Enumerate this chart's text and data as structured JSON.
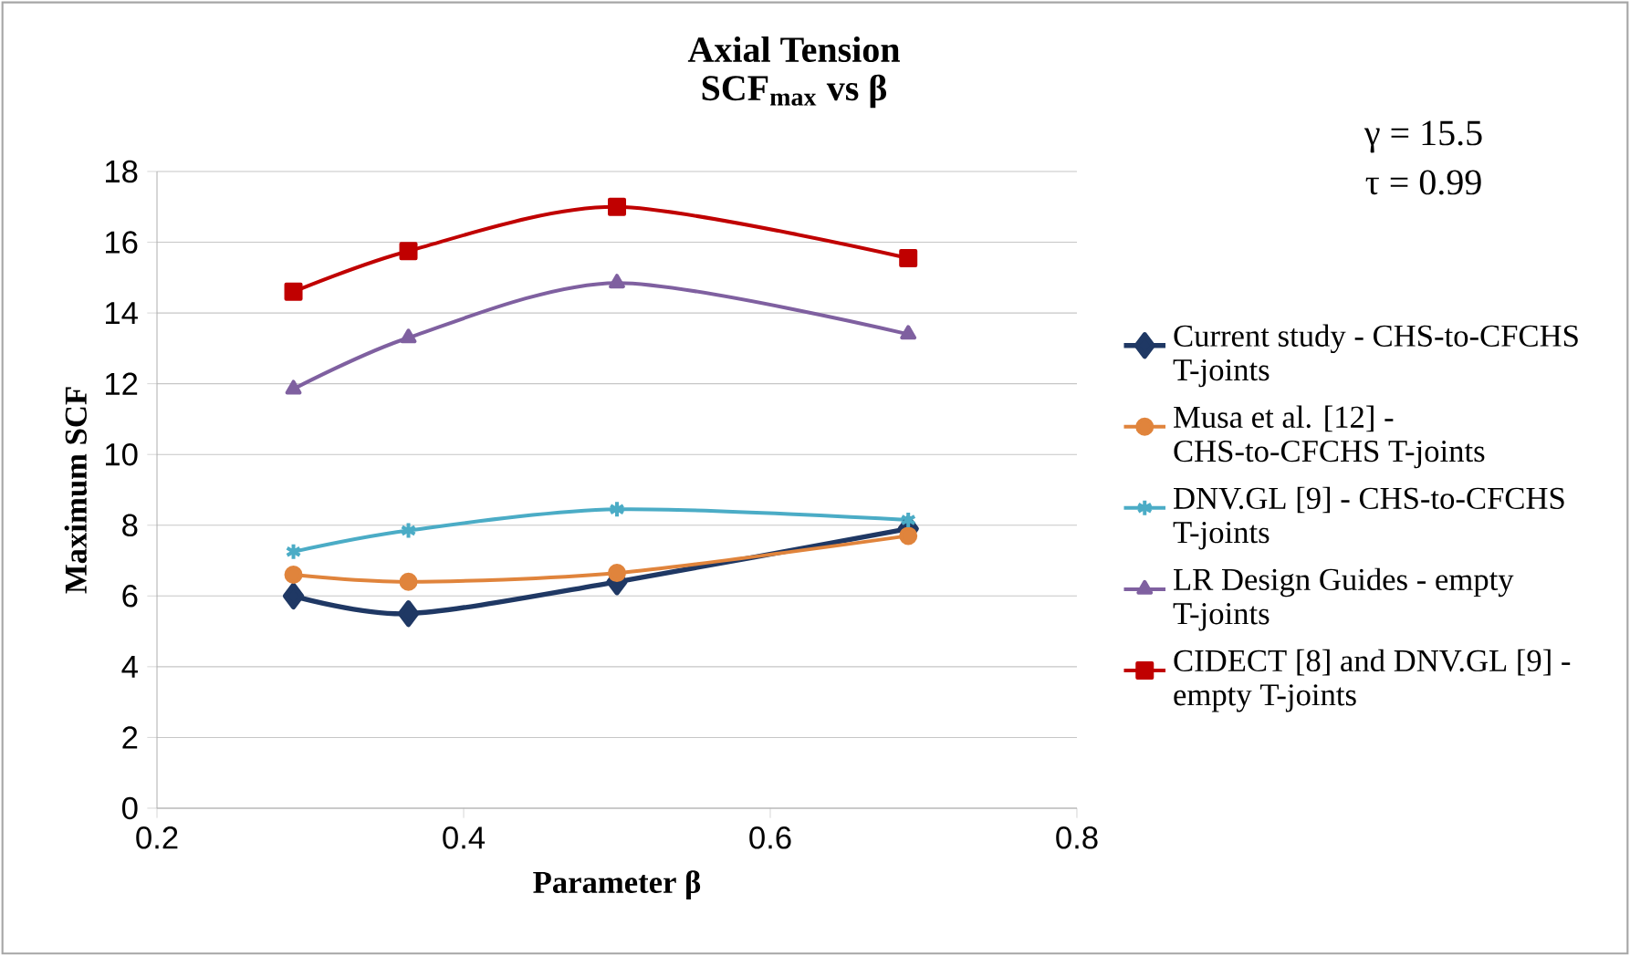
{
  "chart_data": {
    "type": "line",
    "title": "Axial Tension",
    "subtitle": "SCF$_{max}$ vs β",
    "xlabel": "Parameter β",
    "ylabel": "Maximum SCF",
    "x": [
      0.289,
      0.364,
      0.5,
      0.69
    ],
    "series": [
      {
        "name": "Current study - CHS-to-CFCHS T-joints",
        "color": "#1f3864",
        "marker": "diamond",
        "values": [
          6.0,
          5.5,
          6.4,
          7.9
        ]
      },
      {
        "name": "Musa et al. [12] - CHS-to-CFCHS T-joints",
        "color": "#e0843c",
        "marker": "circle",
        "values": [
          6.6,
          6.4,
          6.65,
          7.7
        ]
      },
      {
        "name": "DNV.GL [9] - CHS-to-CFCHS T-joints",
        "color": "#4bacc6",
        "marker": "cross",
        "values": [
          7.25,
          7.85,
          8.45,
          8.15
        ]
      },
      {
        "name": "LR Design Guides - empty T-joints",
        "color": "#7f60a0",
        "marker": "triangle",
        "values": [
          11.85,
          13.3,
          14.85,
          13.4
        ]
      },
      {
        "name": "CIDECT [8] and DNV.GL [9] - empty T-joints",
        "color": "#c00000",
        "marker": "square",
        "values": [
          14.6,
          15.75,
          17.0,
          15.55
        ]
      }
    ],
    "xlim": [
      0.2,
      0.8
    ],
    "xticks": [
      0.2,
      0.4,
      0.6,
      0.8
    ],
    "ylim": [
      0,
      18
    ],
    "yticks": [
      0,
      2,
      4,
      6,
      8,
      10,
      12,
      14,
      16,
      18
    ],
    "grid": "y",
    "legend": "right",
    "annotations": [
      "γ = 15.5",
      "τ = 0.99"
    ]
  }
}
